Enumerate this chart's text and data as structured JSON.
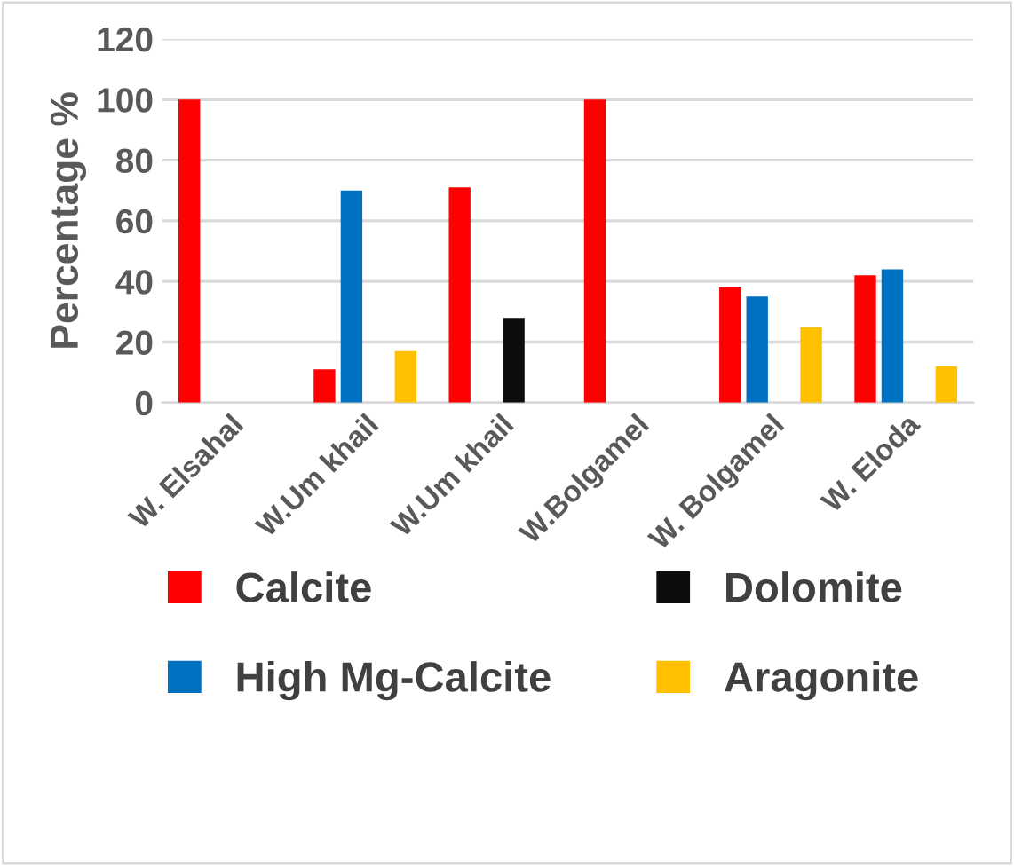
{
  "chart_data": {
    "type": "bar",
    "ylabel": "Percentage %",
    "categories": [
      "W. Elsahal",
      "W.Um khail",
      "W.Um khail",
      "W.Bolgamel",
      "W. Bolgamel",
      "W. Eloda"
    ],
    "series": [
      {
        "name": "Calcite",
        "color": "#ff0000",
        "values": [
          100,
          11,
          71,
          100,
          38,
          42
        ]
      },
      {
        "name": "High Mg-Calcite",
        "color": "#0070c0",
        "values": [
          null,
          70,
          null,
          null,
          35,
          44
        ]
      },
      {
        "name": "Dolomite",
        "color": "#0d0d0d",
        "values": [
          null,
          null,
          28,
          null,
          null,
          null
        ]
      },
      {
        "name": "Aragonite",
        "color": "#ffc000",
        "values": [
          null,
          17,
          null,
          null,
          25,
          12
        ]
      }
    ],
    "ylim": [
      0,
      120
    ],
    "yticks": [
      0,
      20,
      40,
      60,
      80,
      100,
      120
    ],
    "grid": "y",
    "legend": "bottom"
  }
}
